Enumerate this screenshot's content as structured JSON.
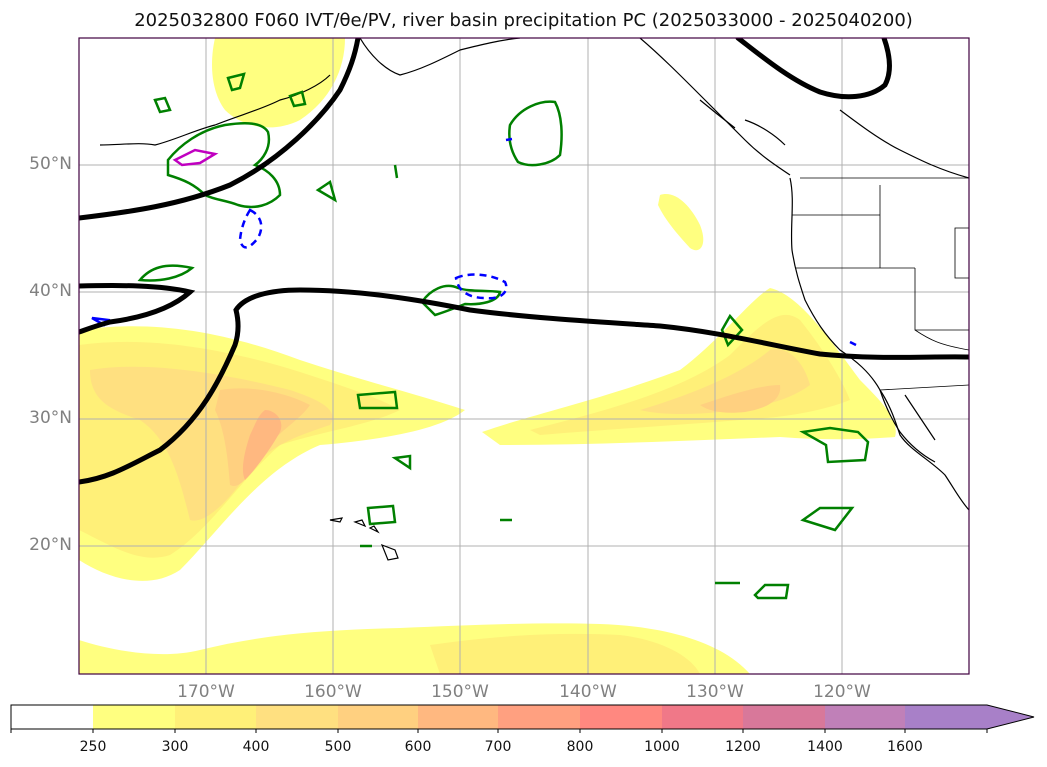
{
  "title": "2025032800 F060 IVT/θe/PV, river basin precipitation PC (2025033000 - 2025040200)",
  "lat_labels": [
    "50°N",
    "40°N",
    "30°N",
    "20°N"
  ],
  "lon_labels": [
    "170°W",
    "160°W",
    "150°W",
    "140°W",
    "130°W",
    "120°W"
  ],
  "colorbar": {
    "ticks": [
      "250",
      "300",
      "400",
      "500",
      "600",
      "700",
      "800",
      "1000",
      "1200",
      "1400",
      "1600"
    ],
    "colors": [
      "#ffffff",
      "#ffff80",
      "#fff078",
      "#ffe080",
      "#ffd080",
      "#ffb880",
      "#ffa080",
      "#ff8880",
      "#f07888",
      "#d8789a",
      "#c080b8",
      "#a880c8"
    ],
    "extend": "max"
  },
  "colors": {
    "theta_contour": "#000000",
    "pv_positive": "#008000",
    "pv_negative": "#0000ff",
    "pv_magenta": "#c000c0",
    "grid": "#b0b0b0",
    "frame": "#400040"
  }
}
